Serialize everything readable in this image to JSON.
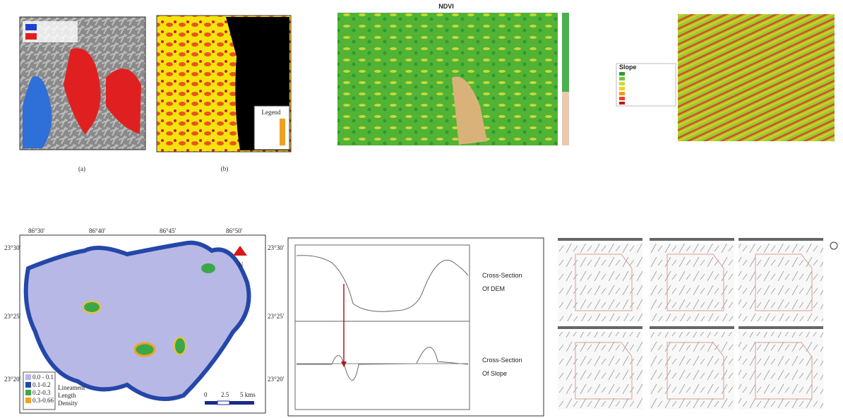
{
  "top_row": {
    "panel_a_label": "(a)",
    "panel_b_label": "(b)",
    "panel_b_legend": "Legend",
    "ndvi_title": "NDVI",
    "slope_legend_title": "Slope"
  },
  "bottom_row": {
    "lineament_map": {
      "north": "N",
      "title_lines": [
        "Lineament",
        "Length",
        "Density"
      ],
      "legend": [
        "0.0 - 0.1",
        "0.1-0.2",
        "0.2-0.3",
        "0.3-0.66"
      ],
      "scale": [
        "0",
        "2.5",
        "5 kms"
      ],
      "top_coords": [
        "86°30'",
        "86°40'",
        "86°45'",
        "86°50'"
      ],
      "right_coords": [
        "23°30'",
        "23°25'",
        "23°20'"
      ],
      "left_coords": [
        "23°30'",
        "23°25'",
        "23°20'"
      ]
    },
    "cross_section": {
      "dem_label": [
        "Cross-Section",
        "Of DEM"
      ],
      "slope_label": [
        "Cross-Section",
        "Of Slope"
      ]
    }
  }
}
